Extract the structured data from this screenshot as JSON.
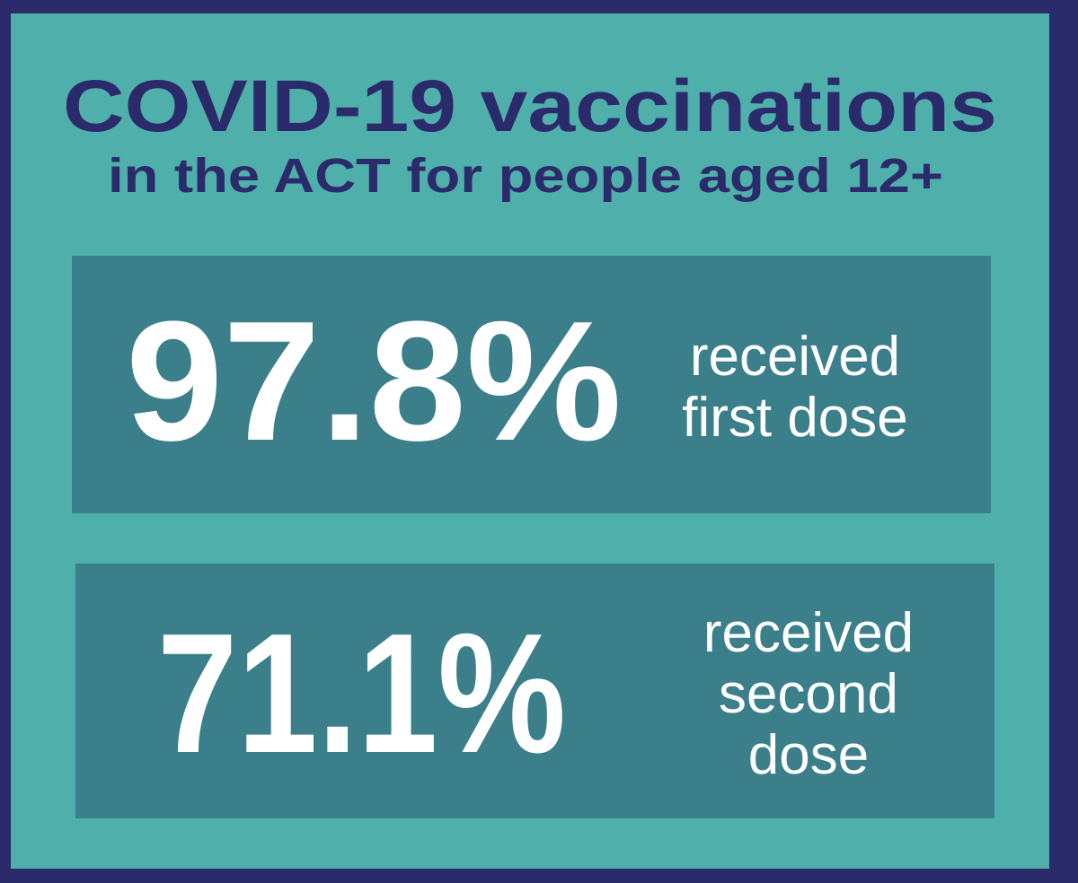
{
  "title": "COVID-19 vaccinations",
  "subtitle": "in the ACT for people aged 12+",
  "stats": [
    {
      "value": "97.8%",
      "label_lines": [
        "received",
        "first dose"
      ]
    },
    {
      "value": "71.1%",
      "label_lines": [
        "received",
        "second",
        "dose"
      ]
    }
  ]
}
